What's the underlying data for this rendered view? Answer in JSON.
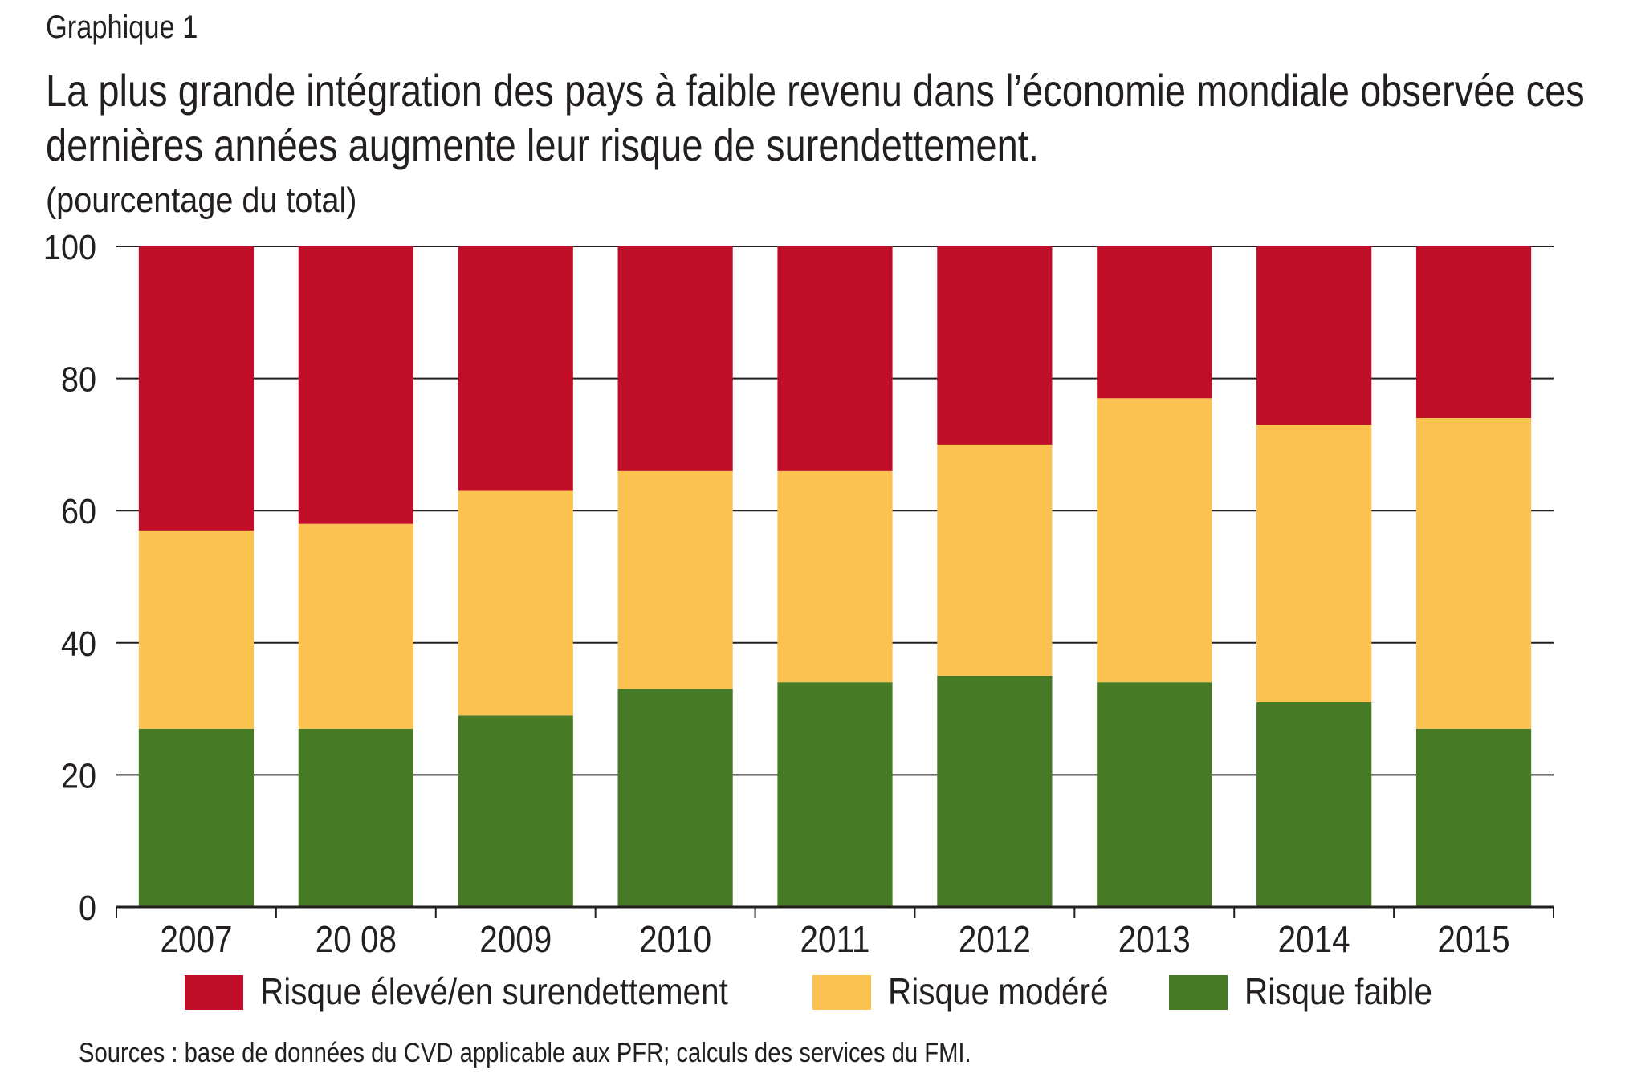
{
  "header": {
    "graph_label": "Graphique 1",
    "title_line_1": "La plus grande intégration des pays à faible revenu dans l’économie mondiale observée ces",
    "title_line_2": "dernières années augmente leur risque de surendettement.",
    "unit": "(pourcentage du total)"
  },
  "chart_data": {
    "type": "bar",
    "stacked": true,
    "title": "La plus grande intégration des pays à faible revenu dans l’économie mondiale observée ces dernières années augmente leur risque de surendettement.",
    "ylabel": "(pourcentage du total)",
    "xlabel": "",
    "ylim": [
      0,
      100
    ],
    "yticks": [
      0,
      20,
      40,
      60,
      80,
      100
    ],
    "grid": true,
    "categories": [
      "2007",
      "20 08",
      "2009",
      "2010",
      "2011",
      "2012",
      "2013",
      "2014",
      "2015"
    ],
    "series": [
      {
        "name": "Risque faible",
        "color": "#477a24",
        "values": [
          27,
          27,
          29,
          33,
          34,
          35,
          34,
          31,
          27
        ]
      },
      {
        "name": "Risque modéré",
        "color": "#fbc151",
        "values": [
          30,
          31,
          34,
          33,
          32,
          35,
          43,
          42,
          47
        ]
      },
      {
        "name": "Risque élevé/en surendettement",
        "color": "#c00d28",
        "values": [
          43,
          42,
          37,
          34,
          34,
          30,
          23,
          27,
          26
        ]
      }
    ],
    "legend_position": "bottom"
  },
  "legend": {
    "items": [
      {
        "label": "Risque élevé/en surendettement",
        "color": "#c00d28"
      },
      {
        "label": "Risque modéré",
        "color": "#fbc151"
      },
      {
        "label": "Risque faible",
        "color": "#477a24"
      }
    ]
  },
  "footer": {
    "source": "Sources : base de données du CVD applicable aux PFR; calculs des services du FMI."
  }
}
